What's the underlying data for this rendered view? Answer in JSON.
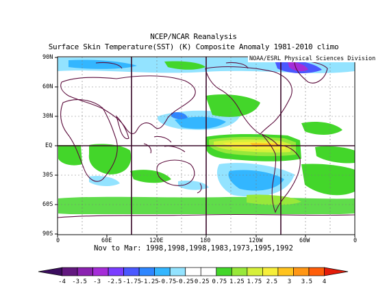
{
  "title": {
    "line1": "NCEP/NCAR Reanalysis",
    "line2": "Surface Skin Temperature(SST) (K) Composite Anomaly 1981-2010 climo"
  },
  "credit": "NOAA/ESRL Physical Sciences Division",
  "lat_labels": [
    "90N",
    "60N",
    "30N",
    "EQ",
    "30S",
    "60S",
    "90S"
  ],
  "lon_labels": [
    "0",
    "60E",
    "120E",
    "180",
    "120W",
    "60W",
    "0"
  ],
  "caption": "Nov to Mar: 1998,1998,1998,1983,1973,1995,1992",
  "colorbar": {
    "labels": [
      "-4",
      "-3.5",
      "-3",
      "-2.5",
      "-1.75",
      "-1.25",
      "-0.75",
      "-0.25",
      "0.25",
      "0.75",
      "1.25",
      "1.75",
      "2.5",
      "3",
      "3.5",
      "4"
    ],
    "colors": [
      "#3b0d5e",
      "#62187f",
      "#8a22b0",
      "#a52dd8",
      "#7a3dff",
      "#4a58ff",
      "#2e86ff",
      "#33b6ff",
      "#93e3ff",
      "#ffffff",
      "#ffffff",
      "#43d62a",
      "#98e83a",
      "#d6f03a",
      "#f6ee3a",
      "#ffc31e",
      "#ff9614",
      "#ff5e0a",
      "#e41c0a"
    ]
  }
}
